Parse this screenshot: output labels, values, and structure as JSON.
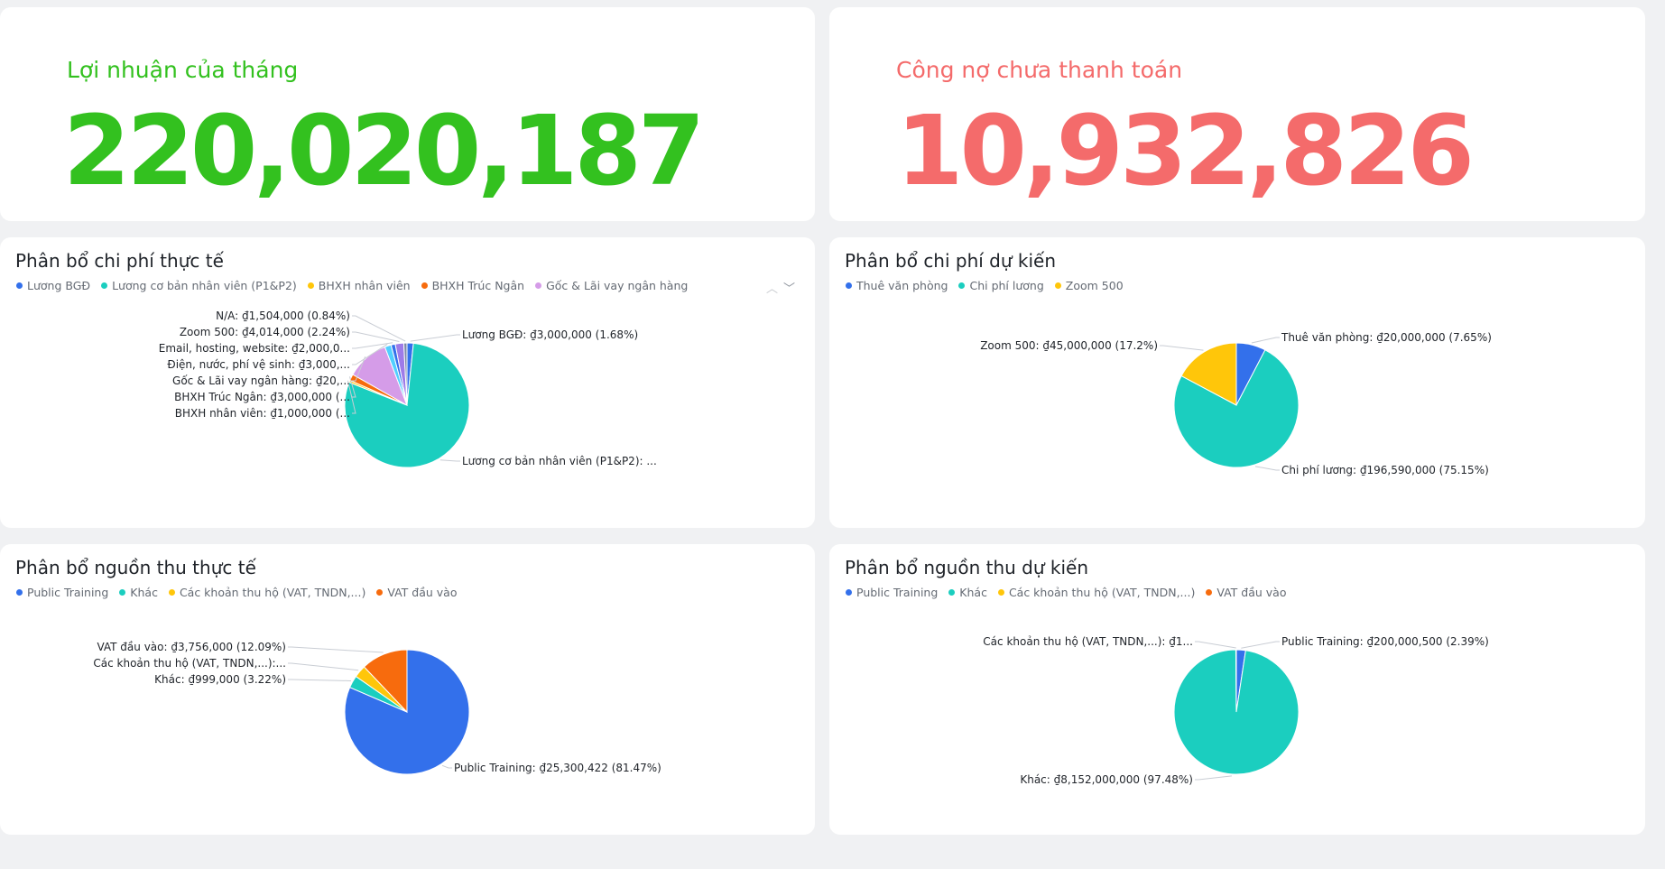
{
  "kpis": {
    "profit": {
      "label": "Lợi nhuận của tháng",
      "value": "220,020,187",
      "color": "#33c11f"
    },
    "debt": {
      "label": "Công nợ chưa thanh toán",
      "value": "10,932,826",
      "color": "#f46b6b"
    }
  },
  "pager_icons": [
    "chevron-up-icon",
    "chevron-down-icon"
  ],
  "chart_data": [
    {
      "type": "pie",
      "title": "Phân bổ chi phí thực tế",
      "legend": [
        {
          "name": "Lương BGĐ",
          "color": "#3370eb"
        },
        {
          "name": "Lương cơ bản nhân viên (P1&P2)",
          "color": "#1bcebf"
        },
        {
          "name": "BHXH nhân viên",
          "color": "#ffc60a"
        },
        {
          "name": "BHXH Trúc Ngân",
          "color": "#f76b0d"
        },
        {
          "name": "Gốc & Lãi vay ngân hàng",
          "color": "#d59ce8"
        }
      ],
      "slices": [
        {
          "name": "Lương BGĐ",
          "percent": 1.68,
          "color": "#3370eb",
          "label": "Lương BGĐ: ₫3,000,000 (1.68%)",
          "side": "right"
        },
        {
          "name": "Lương cơ bản nhân viên (P1&P2)",
          "percent": 80.62,
          "color": "#1bcebf",
          "label": "Lương cơ bản nhân viên (P1&P2): ...",
          "side": "right"
        },
        {
          "name": "BHXH nhân viên",
          "percent": 0.56,
          "color": "#ffc60a",
          "label": "BHXH nhân viên: ₫1,000,000 (...",
          "side": "left"
        },
        {
          "name": "BHXH Trúc Ngân",
          "percent": 1.68,
          "color": "#f76b0d",
          "label": "BHXH Trúc Ngân: ₫3,000,000 (...",
          "side": "left"
        },
        {
          "name": "Gốc & Lãi vay ngân hàng",
          "percent": 11.2,
          "color": "#d59ce8",
          "label": "Gốc & Lãi vay ngân hàng: ₫20,...",
          "side": "left"
        },
        {
          "name": "Điện, nước, phí vệ sinh",
          "percent": 1.68,
          "color": "#51cfff",
          "label": "Điện, nước, phí vệ sinh: ₫3,000,...",
          "side": "left"
        },
        {
          "name": "Email, hosting, website",
          "percent": 1.12,
          "color": "#3370eb",
          "label": "Email, hosting, website: ₫2,000,0...",
          "side": "left"
        },
        {
          "name": "Zoom 500",
          "percent": 2.24,
          "color": "#9e7be8",
          "label": "Zoom 500: ₫4,014,000 (2.24%)",
          "side": "left"
        },
        {
          "name": "N/A",
          "percent": 0.84,
          "color": "#7c89a8",
          "label": "N/A: ₫1,504,000 (0.84%)",
          "side": "left"
        }
      ]
    },
    {
      "type": "pie",
      "title": "Phân bổ chi phí dự kiến",
      "legend": [
        {
          "name": "Thuê văn phòng",
          "color": "#3370eb"
        },
        {
          "name": "Chi phí lương",
          "color": "#1bcebf"
        },
        {
          "name": "Zoom 500",
          "color": "#ffc60a"
        }
      ],
      "slices": [
        {
          "name": "Thuê văn phòng",
          "percent": 7.65,
          "color": "#3370eb",
          "label": "Thuê văn phòng: ₫20,000,000 (7.65%)",
          "side": "right"
        },
        {
          "name": "Chi phí lương",
          "percent": 75.15,
          "color": "#1bcebf",
          "label": "Chi phí lương: ₫196,590,000 (75.15%)",
          "side": "right"
        },
        {
          "name": "Zoom 500",
          "percent": 17.2,
          "color": "#ffc60a",
          "label": "Zoom 500: ₫45,000,000 (17.2%)",
          "side": "left"
        }
      ]
    },
    {
      "type": "pie",
      "title": "Phân bổ nguồn thu thực tế",
      "legend": [
        {
          "name": "Public Training",
          "color": "#3370eb"
        },
        {
          "name": "Khác",
          "color": "#1bcebf"
        },
        {
          "name": "Các khoản thu hộ (VAT, TNDN,...)",
          "color": "#ffc60a"
        },
        {
          "name": "VAT đầu vào",
          "color": "#f76b0d"
        }
      ],
      "slices": [
        {
          "name": "Public Training",
          "percent": 81.47,
          "color": "#3370eb",
          "label": "Public Training: ₫25,300,422 (81.47%)",
          "side": "right"
        },
        {
          "name": "Khác",
          "percent": 3.22,
          "color": "#1bcebf",
          "label": "Khác: ₫999,000 (3.22%)",
          "side": "left"
        },
        {
          "name": "Các khoản thu hộ (VAT, TNDN,...)",
          "percent": 3.22,
          "color": "#ffc60a",
          "label": "Các khoản thu hộ (VAT, TNDN,...):...",
          "side": "left"
        },
        {
          "name": "VAT đầu vào",
          "percent": 12.09,
          "color": "#f76b0d",
          "label": "VAT đầu vào: ₫3,756,000 (12.09%)",
          "side": "left"
        }
      ]
    },
    {
      "type": "pie",
      "title": "Phân bổ nguồn thu dự kiến",
      "legend": [
        {
          "name": "Public Training",
          "color": "#3370eb"
        },
        {
          "name": "Khác",
          "color": "#1bcebf"
        },
        {
          "name": "Các khoản thu hộ (VAT, TNDN,...)",
          "color": "#ffc60a"
        },
        {
          "name": "VAT đầu vào",
          "color": "#f76b0d"
        }
      ],
      "slices": [
        {
          "name": "Public Training",
          "percent": 2.39,
          "color": "#3370eb",
          "label": "Public Training: ₫200,000,500 (2.39%)",
          "side": "right"
        },
        {
          "name": "Khác",
          "percent": 97.48,
          "color": "#1bcebf",
          "label": "Khác: ₫8,152,000,000 (97.48%)",
          "side": "left"
        },
        {
          "name": "Các khoản thu hộ (VAT, TNDN,...)",
          "percent": 0.13,
          "color": "#ffc60a",
          "label": "Các khoản thu hộ (VAT, TNDN,...): ₫1...",
          "side": "left"
        }
      ]
    }
  ]
}
